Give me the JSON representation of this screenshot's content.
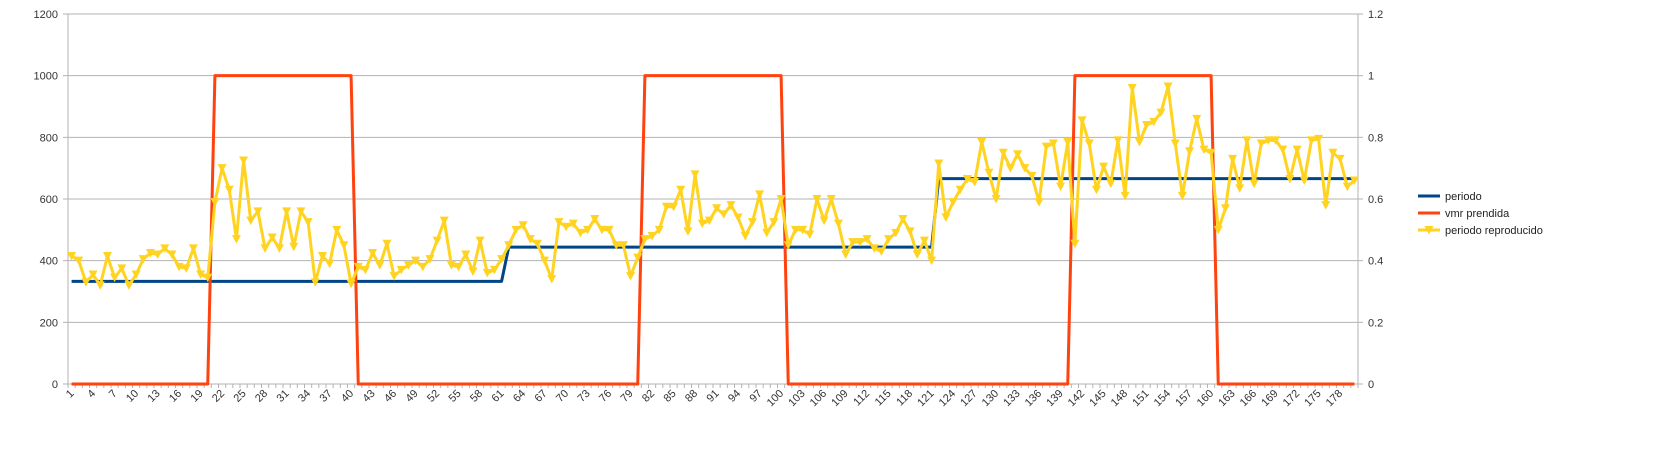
{
  "chart_data": {
    "type": "line",
    "grid": true,
    "legend_position": "right",
    "x": {
      "start": 1,
      "end": 180,
      "tick_labels": [
        "1",
        "4",
        "7",
        "10",
        "13",
        "16",
        "19",
        "22",
        "25",
        "28",
        "31",
        "34",
        "37",
        "40",
        "43",
        "46",
        "49",
        "52",
        "55",
        "58",
        "61",
        "64",
        "67",
        "70",
        "73",
        "76",
        "79",
        "82",
        "85",
        "88",
        "91",
        "94",
        "97",
        "100",
        "103",
        "106",
        "109",
        "112",
        "115",
        "118",
        "121",
        "124",
        "127",
        "130",
        "133",
        "136",
        "139",
        "142",
        "145",
        "148",
        "151",
        "154",
        "157",
        "160",
        "163",
        "166",
        "169",
        "172",
        "175",
        "178"
      ]
    },
    "y_left": {
      "min": 0,
      "max": 1200,
      "tick_labels": [
        "0",
        "200",
        "400",
        "600",
        "800",
        "1000",
        "1200"
      ]
    },
    "y_right": {
      "min": 0,
      "max": 1.2,
      "tick_labels": [
        "0",
        "0.2",
        "0.4",
        "0.6",
        "0.8",
        "1",
        "1.2"
      ]
    },
    "series": [
      {
        "name": "periodo",
        "axis": "left",
        "color": "#004586",
        "marker": "none",
        "segments": [
          {
            "from": 1,
            "to": 61,
            "value": 333
          },
          {
            "from": 62,
            "to": 121,
            "value": 444
          },
          {
            "from": 122,
            "to": 180,
            "value": 666
          }
        ]
      },
      {
        "name": "vmr prendida",
        "axis": "right",
        "color": "#ff420e",
        "marker": "none",
        "segments": [
          {
            "from": 1,
            "to": 20,
            "value": 0
          },
          {
            "from": 21,
            "to": 40,
            "value": 1
          },
          {
            "from": 41,
            "to": 80,
            "value": 0
          },
          {
            "from": 81,
            "to": 100,
            "value": 1
          },
          {
            "from": 101,
            "to": 140,
            "value": 0
          },
          {
            "from": 141,
            "to": 160,
            "value": 1
          },
          {
            "from": 161,
            "to": 180,
            "value": 0
          }
        ]
      },
      {
        "name": "periodo reproducido",
        "axis": "left",
        "color": "#ffd320",
        "marker": "triangle-down",
        "values": [
          415,
          400,
          330,
          355,
          320,
          415,
          345,
          375,
          320,
          355,
          405,
          425,
          420,
          440,
          420,
          380,
          375,
          440,
          355,
          345,
          590,
          700,
          630,
          470,
          725,
          530,
          560,
          440,
          475,
          440,
          560,
          445,
          560,
          525,
          330,
          415,
          390,
          500,
          450,
          325,
          380,
          370,
          425,
          385,
          455,
          350,
          370,
          385,
          400,
          380,
          405,
          465,
          530,
          385,
          380,
          420,
          365,
          465,
          360,
          370,
          405,
          450,
          500,
          515,
          470,
          455,
          400,
          340,
          525,
          510,
          520,
          490,
          500,
          535,
          500,
          500,
          450,
          450,
          350,
          410,
          470,
          480,
          500,
          575,
          575,
          630,
          495,
          680,
          520,
          530,
          570,
          550,
          580,
          540,
          480,
          525,
          615,
          490,
          525,
          600,
          450,
          500,
          500,
          485,
          600,
          530,
          600,
          520,
          420,
          460,
          460,
          470,
          440,
          430,
          470,
          490,
          535,
          495,
          420,
          465,
          400,
          715,
          540,
          590,
          630,
          665,
          655,
          785,
          685,
          600,
          750,
          700,
          745,
          700,
          675,
          590,
          770,
          780,
          640,
          785,
          455,
          855,
          780,
          630,
          705,
          650,
          790,
          610,
          960,
          785,
          840,
          850,
          880,
          965,
          780,
          610,
          755,
          860,
          760,
          750,
          500,
          570,
          730,
          635,
          790,
          650,
          780,
          790,
          790,
          760,
          665,
          760,
          660,
          790,
          795,
          580,
          750,
          730,
          640,
          660
        ]
      }
    ]
  }
}
